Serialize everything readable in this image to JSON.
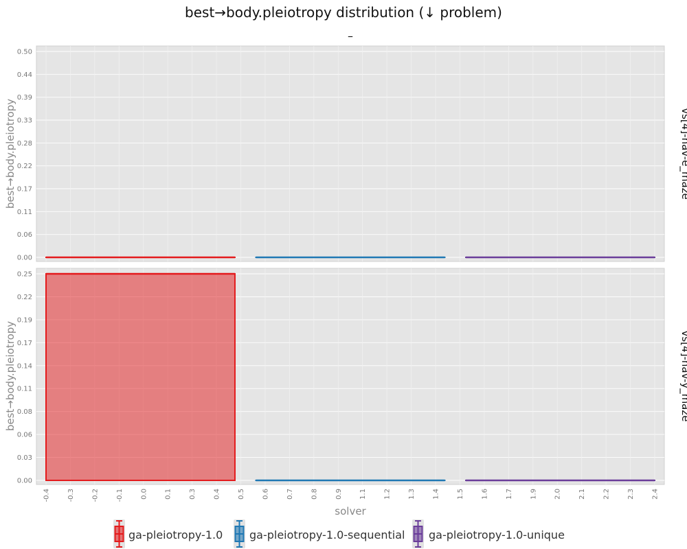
{
  "chart_data": {
    "type": "box",
    "title": "best→body.pleiotropy distribution (↓ problem)",
    "subtitle": "–",
    "xlabel": "solver",
    "ylabel": "best→body.pleiotropy",
    "x_ticks": [
      "-0.4",
      "-0.3",
      "-0.2",
      "-0.1",
      "0.0",
      "0.1",
      "0.3",
      "0.4",
      "0.5",
      "0.6",
      "0.7",
      "0.8",
      "0.9",
      "1.1",
      "1.2",
      "1.3",
      "1.4",
      "1.5",
      "1.6",
      "1.7",
      "1.9",
      "2.0",
      "2.1",
      "2.2",
      "2.3",
      "2.4"
    ],
    "xlim": [
      -0.45,
      2.45
    ],
    "grid": true,
    "legend_position": "bottom",
    "colors": {
      "ga-pleiotropy-1.0": "#e41a1c",
      "ga-pleiotropy-1.0-sequential": "#1f78b4",
      "ga-pleiotropy-1.0-unique": "#6a3d9a"
    },
    "series": [
      {
        "name": "ga-pleiotropy-1.0",
        "x_range": [
          -0.45,
          0.45
        ]
      },
      {
        "name": "ga-pleiotropy-1.0-sequential",
        "x_range": [
          0.55,
          1.45
        ]
      },
      {
        "name": "ga-pleiotropy-1.0-unique",
        "x_range": [
          1.55,
          2.45
        ]
      }
    ],
    "panels": [
      {
        "facet": "vs[4]-nav-e_maze",
        "ylim": [
          0,
          0.5
        ],
        "y_ticks": [
          "0.00",
          "0.06",
          "0.11",
          "0.17",
          "0.22",
          "0.28",
          "0.33",
          "0.39",
          "0.44",
          "0.50"
        ],
        "boxes": [
          {
            "series": "ga-pleiotropy-1.0",
            "min": 0,
            "q1": 0,
            "median": 0,
            "q3": 0,
            "max": 0
          },
          {
            "series": "ga-pleiotropy-1.0-sequential",
            "min": 0,
            "q1": 0,
            "median": 0,
            "q3": 0,
            "max": 0
          },
          {
            "series": "ga-pleiotropy-1.0-unique",
            "min": 0,
            "q1": 0,
            "median": 0,
            "q3": 0,
            "max": 0
          }
        ]
      },
      {
        "facet": "vs[4]-nav-y_maze",
        "ylim": [
          0,
          0.25
        ],
        "y_ticks": [
          "0.00",
          "0.03",
          "0.06",
          "0.08",
          "0.11",
          "0.14",
          "0.17",
          "0.19",
          "0.22",
          "0.25"
        ],
        "boxes": [
          {
            "series": "ga-pleiotropy-1.0",
            "min": 0,
            "q1": 0,
            "median": 0.25,
            "q3": 0.25,
            "max": 0.25
          },
          {
            "series": "ga-pleiotropy-1.0-sequential",
            "min": 0,
            "q1": 0,
            "median": 0,
            "q3": 0,
            "max": 0
          },
          {
            "series": "ga-pleiotropy-1.0-unique",
            "min": 0,
            "q1": 0,
            "median": 0,
            "q3": 0,
            "max": 0
          }
        ]
      }
    ]
  }
}
